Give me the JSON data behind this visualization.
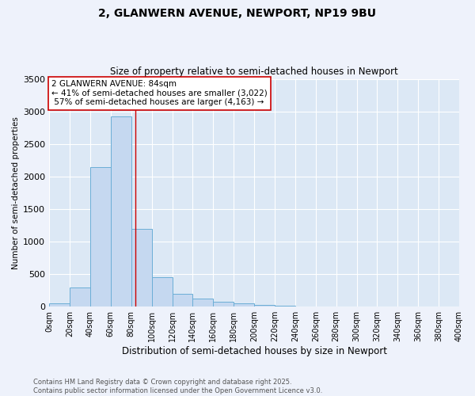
{
  "title_line1": "2, GLANWERN AVENUE, NEWPORT, NP19 9BU",
  "title_line2": "Size of property relative to semi-detached houses in Newport",
  "xlabel": "Distribution of semi-detached houses by size in Newport",
  "ylabel": "Number of semi-detached properties",
  "bar_values": [
    50,
    290,
    2150,
    2920,
    1200,
    450,
    195,
    130,
    75,
    55,
    30,
    15,
    5,
    2,
    0,
    0,
    0,
    0,
    0,
    0
  ],
  "bin_starts": [
    0,
    20,
    40,
    60,
    80,
    100,
    120,
    140,
    160,
    180,
    200,
    220,
    240,
    260,
    280,
    300,
    320,
    340,
    360,
    380
  ],
  "tick_labels": [
    "0sqm",
    "20sqm",
    "40sqm",
    "60sqm",
    "80sqm",
    "100sqm",
    "120sqm",
    "140sqm",
    "160sqm",
    "180sqm",
    "200sqm",
    "220sqm",
    "240sqm",
    "260sqm",
    "280sqm",
    "300sqm",
    "320sqm",
    "340sqm",
    "360sqm",
    "380sqm",
    "400sqm"
  ],
  "bar_color": "#c5d8f0",
  "bar_edge_color": "#6baed6",
  "property_size": 84,
  "property_label": "2 GLANWERN AVENUE: 84sqm",
  "pct_smaller": 41,
  "count_smaller": 3022,
  "pct_larger": 57,
  "count_larger": 4163,
  "vline_color": "#cc0000",
  "annotation_box_color": "#cc0000",
  "background_color": "#eef2fb",
  "ylim": [
    0,
    3500
  ],
  "yticks": [
    0,
    500,
    1000,
    1500,
    2000,
    2500,
    3000,
    3500
  ],
  "footer_line1": "Contains HM Land Registry data © Crown copyright and database right 2025.",
  "footer_line2": "Contains public sector information licensed under the Open Government Licence v3.0.",
  "grid_color": "#ffffff",
  "axes_bg_color": "#dce8f5"
}
